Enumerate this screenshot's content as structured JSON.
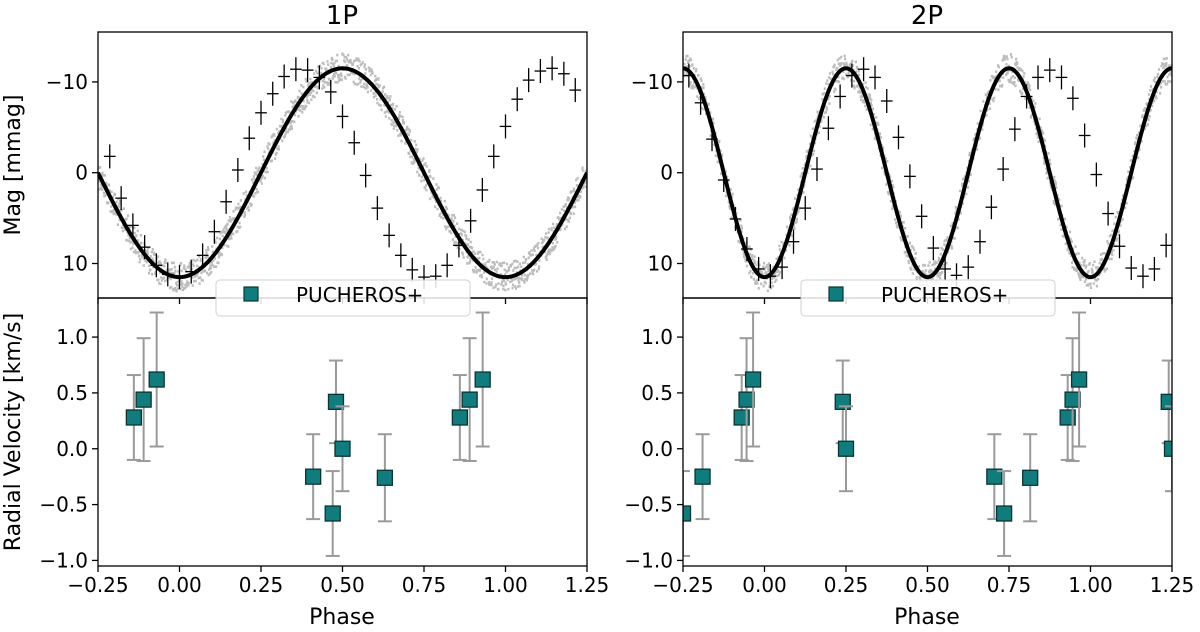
{
  "figure": {
    "shared_xlabel": "Phase",
    "mag_ylabel": "Mag [mmag]",
    "rv_ylabel": "Radial Velocity [km/s]",
    "legend_label": "PUCHEROS+",
    "colors": {
      "marker_fill": "#0f7d7d",
      "marker_edge": "#0b3434",
      "errorbar": "#9a9a9a",
      "model_line": "#000000",
      "data_band": "#bdbdbd"
    }
  },
  "chart_data": [
    {
      "type": "line",
      "panel": "top-left",
      "title": "1P",
      "ylabel": "Mag [mmag]",
      "xlim": [
        -0.25,
        1.25
      ],
      "ylim": [
        13.8,
        -15.5
      ],
      "y_inverted": true,
      "xticks": [
        -0.25,
        0.0,
        0.25,
        0.5,
        0.75,
        1.0,
        1.25
      ],
      "yticks": [
        -10,
        0,
        10
      ],
      "ytick_labels": [
        "−10",
        "0",
        "10"
      ],
      "model": {
        "amplitude": 11.5,
        "cycles_per_phase": 1,
        "min_mag_phase": 0.5
      },
      "binned_x": [
        -0.214,
        -0.179,
        -0.143,
        -0.107,
        -0.071,
        -0.036,
        0.0,
        0.036,
        0.071,
        0.107,
        0.143,
        0.179,
        0.214,
        0.25,
        0.286,
        0.321,
        0.357,
        0.393,
        0.429,
        0.464,
        0.5,
        0.536,
        0.571,
        0.607,
        0.643,
        0.679,
        0.714,
        0.75,
        0.786,
        0.821,
        0.857,
        0.893,
        0.929,
        0.964,
        1.0,
        1.036,
        1.071,
        1.107,
        1.143,
        1.179,
        1.214
      ],
      "binned_y": [
        -1.8,
        2.8,
        5.8,
        8.2,
        10.2,
        11.2,
        11.5,
        10.9,
        9.1,
        6.5,
        3.2,
        -0.3,
        -3.8,
        -6.6,
        -8.7,
        -10.6,
        -11.4,
        -11.3,
        -10.5,
        -8.9,
        -6.2,
        -3.3,
        0.3,
        3.9,
        6.9,
        9.1,
        10.7,
        11.5,
        11.4,
        10.2,
        8.0,
        5.3,
        1.9,
        -1.8,
        -5.1,
        -8.1,
        -10.2,
        -11.2,
        -11.5,
        -10.9,
        -9.1
      ],
      "binned_y_note": "binned magnitudes (mmag)"
    },
    {
      "type": "line",
      "panel": "top-right",
      "title": "2P",
      "xlim": [
        -0.25,
        1.25
      ],
      "ylim": [
        13.8,
        -15.5
      ],
      "y_inverted": true,
      "xticks": [
        -0.25,
        0.0,
        0.25,
        0.5,
        0.75,
        1.0,
        1.25
      ],
      "yticks": [
        -10,
        0,
        10
      ],
      "ytick_labels": [
        "−10",
        "0",
        "10"
      ],
      "model": {
        "amplitude": 11.5,
        "cycles_per_phase": 2,
        "min_mag_phase": 0.25
      },
      "binned_x": [
        -0.232,
        -0.196,
        -0.161,
        -0.125,
        -0.089,
        -0.054,
        -0.018,
        0.018,
        0.054,
        0.089,
        0.125,
        0.161,
        0.196,
        0.232,
        0.268,
        0.304,
        0.339,
        0.375,
        0.411,
        0.446,
        0.482,
        0.518,
        0.554,
        0.589,
        0.625,
        0.661,
        0.696,
        0.732,
        0.768,
        0.804,
        0.839,
        0.875,
        0.911,
        0.946,
        0.982,
        1.018,
        1.054,
        1.089,
        1.125,
        1.161,
        1.196,
        1.232
      ],
      "binned_y": [
        -10.7,
        -7.7,
        -3.7,
        0.8,
        5.1,
        8.4,
        10.6,
        11.4,
        10.4,
        7.6,
        3.9,
        -0.4,
        -4.9,
        -8.4,
        -10.7,
        -11.4,
        -10.5,
        -7.9,
        -3.9,
        0.4,
        4.8,
        8.3,
        10.6,
        11.3,
        10.4,
        7.6,
        3.8,
        -0.4,
        -4.8,
        -8.4,
        -10.5,
        -11.3,
        -10.5,
        -8.2,
        -4.1,
        0.2,
        4.5,
        8.1,
        10.5,
        11.4,
        10.6,
        8.0
      ],
      "binned_y_note": "binned magnitudes (mmag)"
    },
    {
      "type": "scatter",
      "panel": "bottom-left",
      "xlabel": "Phase",
      "ylabel": "Radial Velocity [km/s]",
      "xlim": [
        -0.25,
        1.25
      ],
      "ylim": [
        -1.05,
        1.35
      ],
      "xticks": [
        -0.25,
        0.0,
        0.25,
        0.5,
        0.75,
        1.0,
        1.25
      ],
      "xtick_labels": [
        "−0.25",
        "0.00",
        "0.25",
        "0.50",
        "0.75",
        "1.00",
        "1.25"
      ],
      "yticks": [
        -1.0,
        -0.5,
        0.0,
        0.5,
        1.0
      ],
      "ytick_labels": [
        "−1.0",
        "−0.5",
        "0.0",
        "0.5",
        "1.0"
      ],
      "legend": [
        "PUCHEROS+"
      ],
      "legend_position": "upper center",
      "points": [
        {
          "x": -0.14,
          "y": 0.28,
          "err": 0.38
        },
        {
          "x": -0.11,
          "y": 0.44,
          "err": 0.55
        },
        {
          "x": -0.07,
          "y": 0.62,
          "err": 0.6
        },
        {
          "x": 0.41,
          "y": -0.25,
          "err": 0.38
        },
        {
          "x": 0.47,
          "y": -0.58,
          "err": 0.38
        },
        {
          "x": 0.48,
          "y": 0.42,
          "err": 0.37
        },
        {
          "x": 0.5,
          "y": 0.0,
          "err": 0.38
        },
        {
          "x": 0.63,
          "y": -0.26,
          "err": 0.39
        },
        {
          "x": 0.86,
          "y": 0.28,
          "err": 0.38
        },
        {
          "x": 0.89,
          "y": 0.44,
          "err": 0.55
        },
        {
          "x": 0.93,
          "y": 0.62,
          "err": 0.6
        }
      ]
    },
    {
      "type": "scatter",
      "panel": "bottom-right",
      "xlabel": "Phase",
      "xlim": [
        -0.25,
        1.25
      ],
      "ylim": [
        -1.05,
        1.35
      ],
      "xticks": [
        -0.25,
        0.0,
        0.25,
        0.5,
        0.75,
        1.0,
        1.25
      ],
      "xtick_labels": [
        "−0.25",
        "0.00",
        "0.25",
        "0.50",
        "0.75",
        "1.00",
        "1.25"
      ],
      "yticks": [
        -1.0,
        -0.5,
        0.0,
        0.5,
        1.0
      ],
      "ytick_labels": [
        "−1.0",
        "−0.5",
        "0.0",
        "0.5",
        "1.0"
      ],
      "legend": [
        "PUCHEROS+"
      ],
      "legend_position": "upper center",
      "points": [
        {
          "x": -0.25,
          "y": -0.58,
          "err": 0.38
        },
        {
          "x": -0.19,
          "y": -0.25,
          "err": 0.38
        },
        {
          "x": -0.07,
          "y": 0.28,
          "err": 0.38
        },
        {
          "x": -0.055,
          "y": 0.44,
          "err": 0.55
        },
        {
          "x": -0.035,
          "y": 0.62,
          "err": 0.6
        },
        {
          "x": 0.24,
          "y": 0.42,
          "err": 0.37
        },
        {
          "x": 0.25,
          "y": 0.0,
          "err": 0.38
        },
        {
          "x": 0.705,
          "y": -0.25,
          "err": 0.38
        },
        {
          "x": 0.735,
          "y": -0.58,
          "err": 0.38
        },
        {
          "x": 0.815,
          "y": -0.26,
          "err": 0.39
        },
        {
          "x": 0.93,
          "y": 0.28,
          "err": 0.38
        },
        {
          "x": 0.945,
          "y": 0.44,
          "err": 0.55
        },
        {
          "x": 0.965,
          "y": 0.62,
          "err": 0.6
        },
        {
          "x": 1.24,
          "y": 0.42,
          "err": 0.37
        },
        {
          "x": 1.25,
          "y": 0.0,
          "err": 0.38
        }
      ]
    }
  ]
}
